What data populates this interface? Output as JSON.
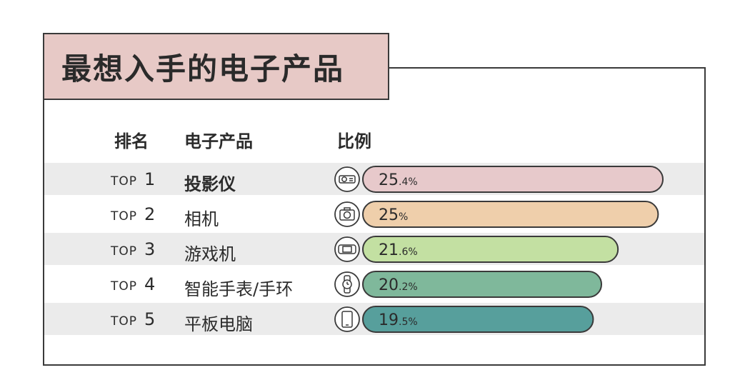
{
  "title": "最想入手的电子产品",
  "headers": {
    "rank": "排名",
    "product": "电子产品",
    "ratio": "比例"
  },
  "chart_data": {
    "type": "bar",
    "orientation": "horizontal",
    "title": "最想入手的电子产品",
    "categories": [
      "投影仪",
      "相机",
      "游戏机",
      "智能手表/手环",
      "平板电脑"
    ],
    "ranks": [
      {
        "prefix": "TOP",
        "num": "1"
      },
      {
        "prefix": "TOP",
        "num": "2"
      },
      {
        "prefix": "TOP",
        "num": "3"
      },
      {
        "prefix": "TOP",
        "num": "4"
      },
      {
        "prefix": "TOP",
        "num": "5"
      }
    ],
    "values": [
      25.4,
      25,
      21.6,
      20.2,
      19.5
    ],
    "labels": [
      {
        "int": "25",
        "dec": ".4%"
      },
      {
        "int": "25",
        "dec": "%"
      },
      {
        "int": "21",
        "dec": ".6%"
      },
      {
        "int": "20",
        "dec": ".2%"
      },
      {
        "int": "19",
        "dec": ".5%"
      }
    ],
    "icons": [
      "projector-icon",
      "camera-icon",
      "game-console-icon",
      "smartwatch-icon",
      "tablet-icon"
    ],
    "colors": [
      "#e7c9cb",
      "#efcfab",
      "#c3e0a2",
      "#7fb89b",
      "#579f9c"
    ],
    "unit": "%"
  }
}
